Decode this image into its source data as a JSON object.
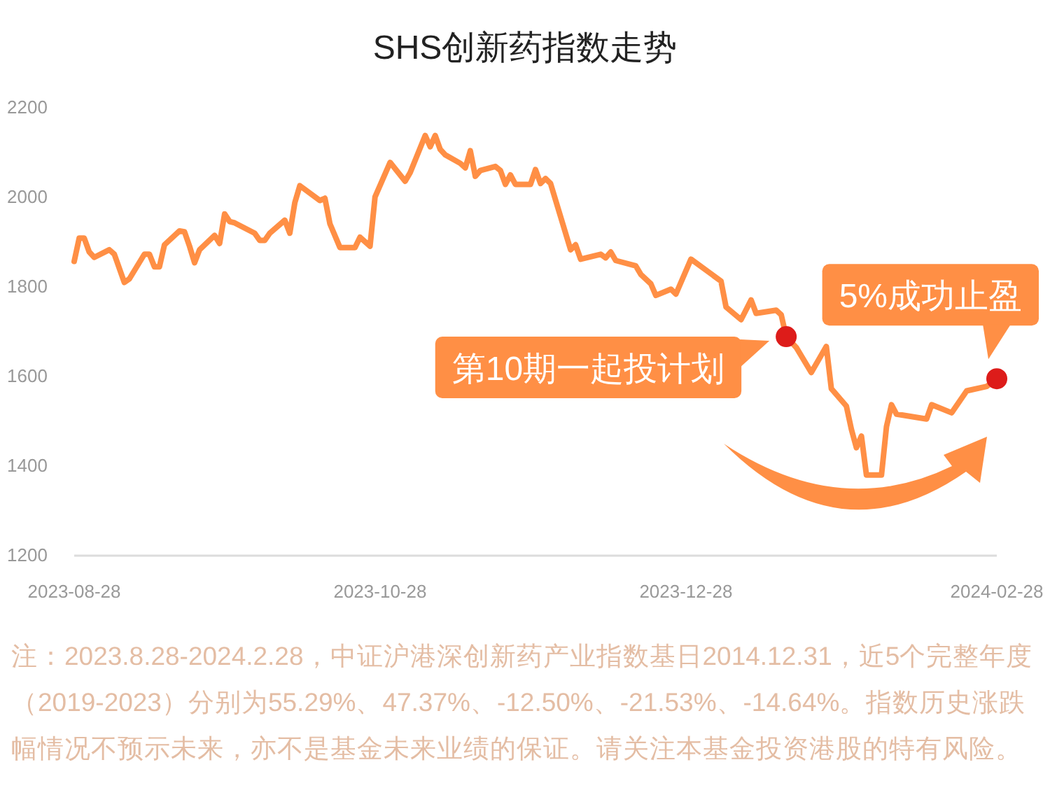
{
  "chart_data": {
    "type": "line",
    "title": "SHS创新药指数走势",
    "x": [
      "2023-08-28",
      "2023-08-29",
      "2023-08-30",
      "2023-08-31",
      "2023-09-01",
      "2023-09-04",
      "2023-09-05",
      "2023-09-07",
      "2023-09-08",
      "2023-09-11",
      "2023-09-12",
      "2023-09-13",
      "2023-09-14",
      "2023-09-15",
      "2023-09-18",
      "2023-09-19",
      "2023-09-20",
      "2023-09-21",
      "2023-09-22",
      "2023-09-25",
      "2023-09-26",
      "2023-09-27",
      "2023-09-28",
      "2023-09-29",
      "2023-10-03",
      "2023-10-04",
      "2023-10-05",
      "2023-10-06",
      "2023-10-09",
      "2023-10-10",
      "2023-10-11",
      "2023-10-12",
      "2023-10-16",
      "2023-10-17",
      "2023-10-18",
      "2023-10-20",
      "2023-10-23",
      "2023-10-24",
      "2023-10-26",
      "2023-10-27",
      "2023-10-30",
      "2023-11-02",
      "2023-11-03",
      "2023-11-06",
      "2023-11-07",
      "2023-11-08",
      "2023-11-09",
      "2023-11-10",
      "2023-11-13",
      "2023-11-14",
      "2023-11-15",
      "2023-11-16",
      "2023-11-17",
      "2023-11-20",
      "2023-11-21",
      "2023-11-22",
      "2023-11-23",
      "2023-11-24",
      "2023-11-27",
      "2023-11-28",
      "2023-11-29",
      "2023-11-30",
      "2023-12-01",
      "2023-12-05",
      "2023-12-06",
      "2023-12-07",
      "2023-12-11",
      "2023-12-12",
      "2023-12-13",
      "2023-12-14",
      "2023-12-18",
      "2023-12-19",
      "2023-12-21",
      "2023-12-22",
      "2023-12-25",
      "2023-12-26",
      "2023-12-29",
      "2024-01-04",
      "2024-01-05",
      "2024-01-08",
      "2024-01-10",
      "2024-01-11",
      "2024-01-15",
      "2024-01-16",
      "2024-01-17",
      "2024-01-19",
      "2024-01-22",
      "2024-01-25",
      "2024-01-26",
      "2024-01-29",
      "2024-01-30",
      "2024-01-31",
      "2024-02-01",
      "2024-02-02",
      "2024-02-05",
      "2024-02-06",
      "2024-02-07",
      "2024-02-08",
      "2024-02-14",
      "2024-02-15",
      "2024-02-19",
      "2024-02-22",
      "2024-02-26",
      "2024-02-28"
    ],
    "series": [
      {
        "color": "#ff8f45",
        "values": [
          1857,
          1909,
          1909,
          1878,
          1866,
          1883,
          1873,
          1810,
          1818,
          1873,
          1873,
          1845,
          1845,
          1894,
          1925,
          1923,
          1891,
          1854,
          1883,
          1915,
          1897,
          1963,
          1946,
          1943,
          1920,
          1904,
          1904,
          1920,
          1949,
          1920,
          1988,
          2026,
          1993,
          1998,
          1941,
          1888,
          1888,
          1911,
          1891,
          2001,
          2078,
          2036,
          2055,
          2138,
          2113,
          2138,
          2107,
          2095,
          2076,
          2066,
          2104,
          2047,
          2060,
          2069,
          2060,
          2029,
          2050,
          2029,
          2029,
          2062,
          2031,
          2042,
          2031,
          1883,
          1894,
          1862,
          1873,
          1865,
          1878,
          1859,
          1847,
          1828,
          1807,
          1781,
          1795,
          1784,
          1862,
          1813,
          1755,
          1727,
          1771,
          1741,
          1748,
          1738,
          1689,
          1665,
          1609,
          1667,
          1573,
          1534,
          1482,
          1441,
          1467,
          1380,
          1380,
          1488,
          1537,
          1516,
          1505,
          1537,
          1519,
          1568,
          1578,
          1595
        ]
      },
      {
        "type": "scatter",
        "marker": "circle",
        "color": "#dd1c1a",
        "x": [
          "2024-01-17",
          "2024-02-28"
        ],
        "values": [
          1689,
          1595
        ]
      }
    ],
    "xlim": [
      "2023-08-28",
      "2024-02-28"
    ],
    "xticks": [
      "2023-08-28",
      "2023-10-28",
      "2023-12-28",
      "2024-02-28"
    ],
    "ylim": [
      1200,
      2200
    ],
    "yticks": [
      1200,
      1400,
      1600,
      1800,
      2000,
      2200
    ],
    "grid": false,
    "line_style": "solid",
    "annotations": [
      {
        "text": "第10期一起投计划",
        "x": "2024-01-17",
        "y": 1689
      },
      {
        "text": "5%成功止盈",
        "x": "2024-02-28",
        "y": 1595
      },
      "注：2023.8.28-2024.2.28，中证沪港深创新药产业指数基日2014.12.31，近5个完整年度（2019-2023）分别为55.29%、47.37%、-12.50%、-21.53%、-14.64%。指数历史涨跌幅情况不预示未来，亦不是基金未来业绩的保证。请关注本基金投资港股的特有风险。"
    ]
  }
}
